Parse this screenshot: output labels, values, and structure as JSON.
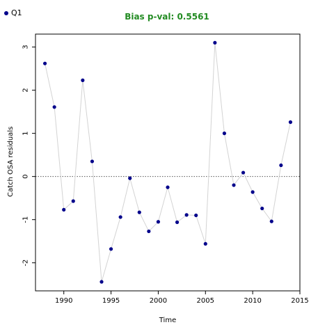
{
  "chart_data": {
    "type": "line",
    "title": "Bias p-val: 0.5561",
    "title_color": "#228b22",
    "xlabel": "Time",
    "ylabel": "Catch OSA residuals",
    "legend": {
      "position": "top-left",
      "entries": [
        "Q1"
      ]
    },
    "xlim": [
      1987,
      2015
    ],
    "ylim": [
      -2.65,
      3.3
    ],
    "xticks": [
      1990,
      1995,
      2000,
      2005,
      2010,
      2015
    ],
    "yticks": [
      -2,
      -1,
      0,
      1,
      2,
      3
    ],
    "reference_line": {
      "y": 0,
      "style": "dotted"
    },
    "grid": false,
    "series": [
      {
        "name": "Q1",
        "color": "#00008b",
        "line_color": "#d3d3d3",
        "x": [
          1988,
          1989,
          1990,
          1991,
          1992,
          1993,
          1994,
          1995,
          1996,
          1997,
          1998,
          1999,
          2000,
          2001,
          2002,
          2003,
          2004,
          2005,
          2006,
          2007,
          2008,
          2009,
          2010,
          2011,
          2012,
          2013,
          2014
        ],
        "y": [
          2.62,
          1.61,
          -0.77,
          -0.57,
          2.23,
          0.35,
          -2.44,
          -1.68,
          -0.94,
          -0.04,
          -0.83,
          -1.27,
          -1.05,
          -0.25,
          -1.06,
          -0.89,
          -0.9,
          -1.56,
          3.1,
          1.0,
          -0.2,
          0.09,
          -0.36,
          -0.74,
          -1.04,
          0.26,
          1.26
        ]
      }
    ]
  }
}
